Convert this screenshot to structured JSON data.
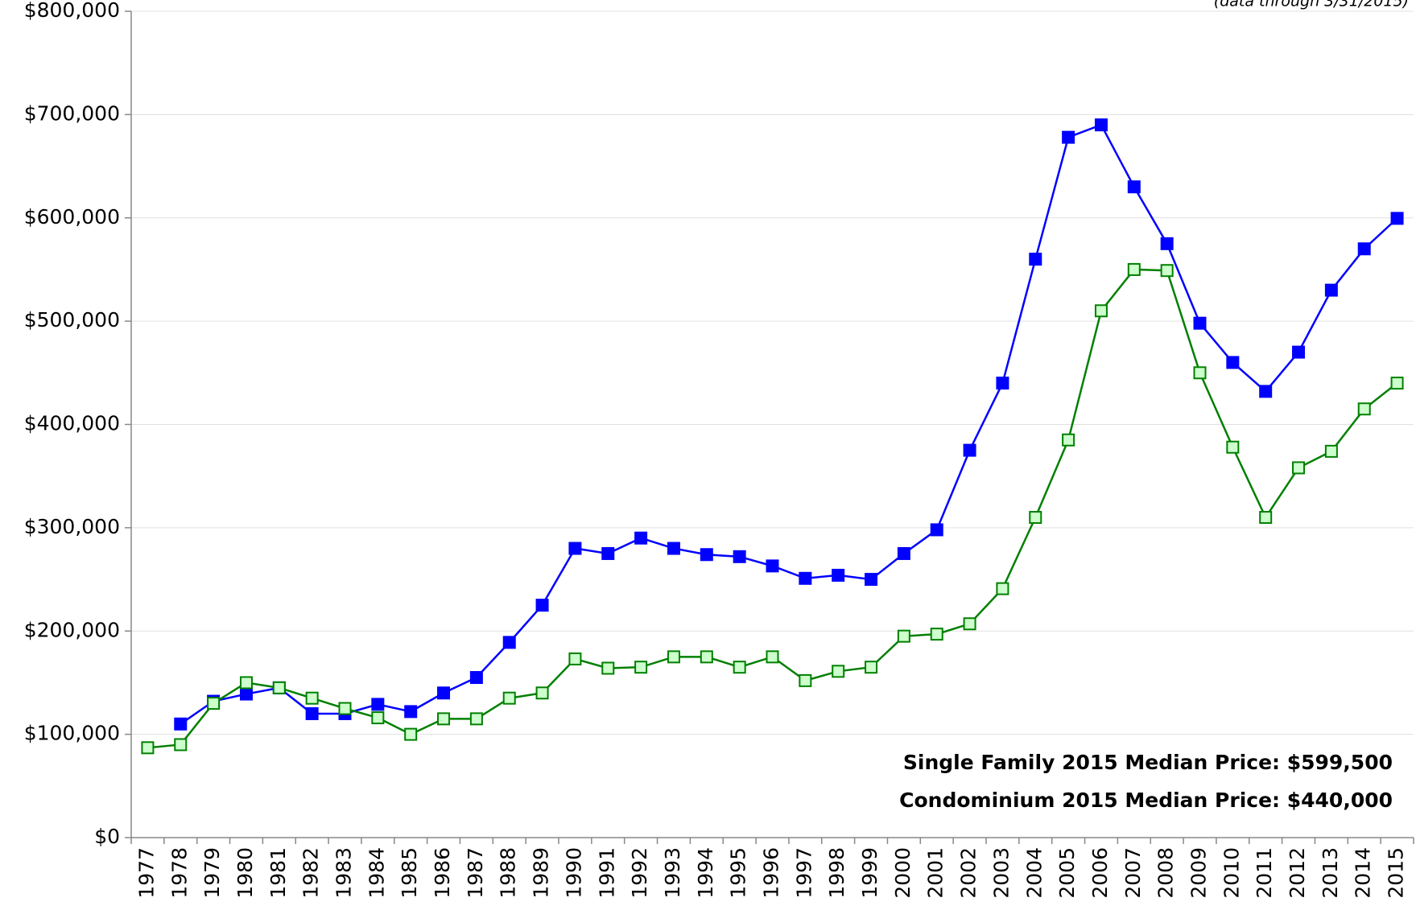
{
  "chart_data": {
    "type": "line",
    "annotations": [
      "(data through 3/31/2015)",
      "Single Family 2015 Median Price: $599,500",
      "Condominium 2015 Median Price: $440,000"
    ],
    "categories": [
      "1977",
      "1978",
      "1979",
      "1980",
      "1981",
      "1982",
      "1983",
      "1984",
      "1985",
      "1986",
      "1987",
      "1988",
      "1989",
      "1990",
      "1991",
      "1992",
      "1993",
      "1994",
      "1995",
      "1996",
      "1997",
      "1998",
      "1999",
      "2000",
      "2001",
      "2002",
      "2003",
      "2004",
      "2005",
      "2006",
      "2007",
      "2008",
      "2009",
      "2010",
      "2011",
      "2012",
      "2013",
      "2014",
      "2015"
    ],
    "series": [
      {
        "color": "#0000ff",
        "marker_fill": "#0000ff",
        "values": [
          null,
          110000,
          132000,
          139000,
          145000,
          120000,
          120000,
          129000,
          122000,
          140000,
          155000,
          189000,
          225000,
          280000,
          275000,
          290000,
          280000,
          274000,
          272000,
          263000,
          251000,
          254000,
          250000,
          275000,
          298000,
          375000,
          440000,
          560000,
          678000,
          690000,
          630000,
          575000,
          498000,
          460000,
          432000,
          470000,
          530000,
          570000,
          599500
        ]
      },
      {
        "color": "#008000",
        "marker_fill": "#ccffcc",
        "values": [
          87000,
          90000,
          130000,
          150000,
          145000,
          135000,
          125000,
          116000,
          100000,
          115000,
          115000,
          135000,
          140000,
          173000,
          164000,
          165000,
          175000,
          175000,
          165000,
          175000,
          152000,
          161000,
          165000,
          195000,
          197000,
          207000,
          241000,
          310000,
          385000,
          510000,
          550000,
          549000,
          450000,
          378000,
          310000,
          358000,
          374000,
          415000,
          440000
        ]
      }
    ],
    "ylim": [
      0,
      800000
    ],
    "yticks": [
      {
        "value": 0,
        "label": "$0"
      },
      {
        "value": 100000,
        "label": "$100,000"
      },
      {
        "value": 200000,
        "label": "$200,000"
      },
      {
        "value": 300000,
        "label": "$300,000"
      },
      {
        "value": 400000,
        "label": "$400,000"
      },
      {
        "value": 500000,
        "label": "$500,000"
      },
      {
        "value": 600000,
        "label": "$600,000"
      },
      {
        "value": 700000,
        "label": "$700,000"
      },
      {
        "value": 800000,
        "label": "$800,000"
      }
    ],
    "grid": true
  }
}
